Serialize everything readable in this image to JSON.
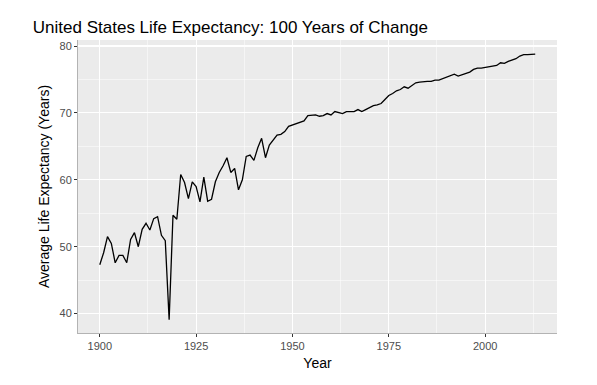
{
  "chart_data": {
    "type": "line",
    "title": "United States Life Expectancy: 100 Years of Change",
    "x_label": "Year",
    "y_label": "Average Life Expectancy (Years)",
    "x": [
      1900,
      1901,
      1902,
      1903,
      1904,
      1905,
      1906,
      1907,
      1908,
      1909,
      1910,
      1911,
      1912,
      1913,
      1914,
      1915,
      1916,
      1917,
      1918,
      1919,
      1920,
      1921,
      1922,
      1923,
      1924,
      1925,
      1926,
      1927,
      1928,
      1929,
      1930,
      1931,
      1932,
      1933,
      1934,
      1935,
      1936,
      1937,
      1938,
      1939,
      1940,
      1941,
      1942,
      1943,
      1944,
      1945,
      1946,
      1947,
      1948,
      1949,
      1950,
      1951,
      1952,
      1953,
      1954,
      1955,
      1956,
      1957,
      1958,
      1959,
      1960,
      1961,
      1962,
      1963,
      1964,
      1965,
      1966,
      1967,
      1968,
      1969,
      1970,
      1971,
      1972,
      1973,
      1974,
      1975,
      1976,
      1977,
      1978,
      1979,
      1980,
      1981,
      1982,
      1983,
      1984,
      1985,
      1986,
      1987,
      1988,
      1989,
      1990,
      1991,
      1992,
      1993,
      1994,
      1995,
      1996,
      1997,
      1998,
      1999,
      2000,
      2001,
      2002,
      2003,
      2004,
      2005,
      2006,
      2007,
      2008,
      2009,
      2010,
      2011,
      2012,
      2013
    ],
    "values": [
      47.3,
      49.1,
      51.5,
      50.5,
      47.6,
      48.7,
      48.7,
      47.6,
      51.1,
      52.1,
      50.0,
      52.6,
      53.5,
      52.5,
      54.2,
      54.5,
      51.7,
      50.9,
      39.1,
      54.7,
      54.1,
      60.8,
      59.6,
      57.2,
      59.7,
      59.0,
      56.7,
      60.4,
      56.8,
      57.1,
      59.7,
      61.1,
      62.1,
      63.3,
      61.1,
      61.7,
      58.5,
      60.0,
      63.5,
      63.7,
      62.9,
      64.8,
      66.2,
      63.3,
      65.2,
      65.9,
      66.7,
      66.8,
      67.2,
      68.0,
      68.2,
      68.4,
      68.6,
      68.8,
      69.6,
      69.6,
      69.7,
      69.5,
      69.6,
      69.9,
      69.7,
      70.2,
      70.1,
      69.9,
      70.2,
      70.2,
      70.2,
      70.5,
      70.2,
      70.5,
      70.8,
      71.1,
      71.2,
      71.4,
      72.0,
      72.6,
      72.9,
      73.3,
      73.5,
      73.9,
      73.7,
      74.1,
      74.5,
      74.6,
      74.7,
      74.7,
      74.7,
      74.9,
      74.9,
      75.1,
      75.4,
      75.5,
      75.8,
      75.5,
      75.7,
      75.8,
      76.1,
      76.5,
      76.7,
      76.7,
      76.8,
      76.9,
      76.9,
      77.1,
      77.5,
      77.4,
      77.7,
      77.9,
      78.1,
      78.5,
      78.7,
      78.7,
      78.8,
      78.8
    ],
    "color": "#000000",
    "xlim": [
      1894.35,
      2018.65
    ],
    "xticks": [
      1900,
      1925,
      1950,
      1975,
      2000
    ],
    "ylim": [
      37.1,
      80.9
    ],
    "yticks": [
      40,
      50,
      60,
      70,
      80
    ],
    "grid": true
  }
}
